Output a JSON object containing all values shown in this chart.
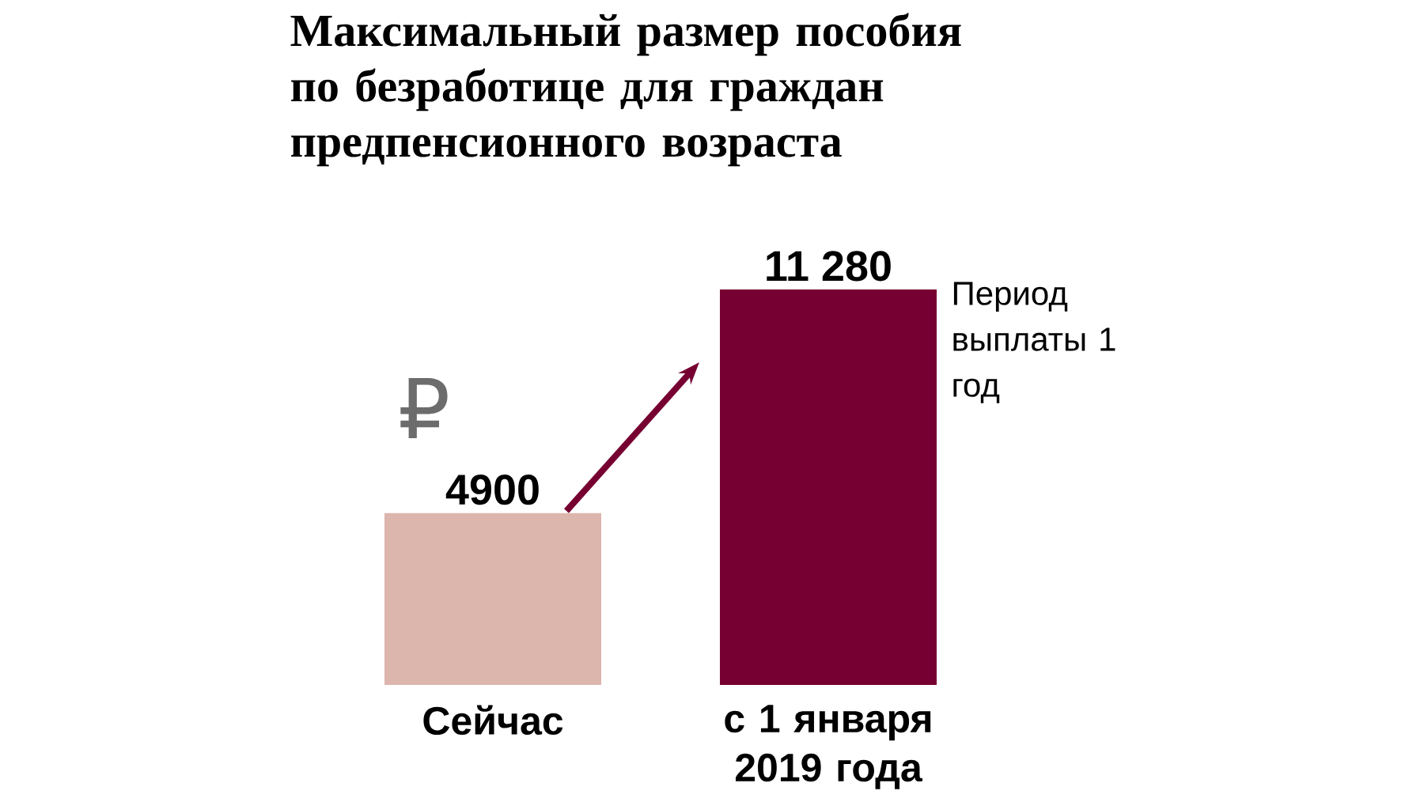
{
  "chart_data": {
    "type": "bar",
    "title": "Максимальный размер пособия по безработице для граждан предпенсионного возраста",
    "categories": [
      "Сейчас",
      "с 1 января 2019 года"
    ],
    "values": [
      4900,
      11280
    ],
    "value_labels": [
      "4900",
      "11 280"
    ],
    "colors": [
      "#dcb5ad",
      "#760031"
    ],
    "ylim": [
      0,
      11280
    ],
    "annotations": [
      "₽",
      "Период выплаты 1 год"
    ]
  }
}
